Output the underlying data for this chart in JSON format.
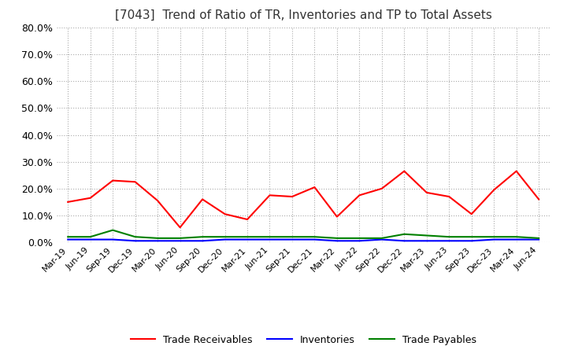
{
  "title": "[7043]  Trend of Ratio of TR, Inventories and TP to Total Assets",
  "title_fontsize": 11,
  "ylim": [
    0.0,
    0.8
  ],
  "yticks": [
    0.0,
    0.1,
    0.2,
    0.3,
    0.4,
    0.5,
    0.6,
    0.7,
    0.8
  ],
  "xlabel": "",
  "ylabel": "",
  "background_color": "#ffffff",
  "plot_bg_color": "#ffffff",
  "grid_color": "#aaaaaa",
  "legend_labels": [
    "Trade Receivables",
    "Inventories",
    "Trade Payables"
  ],
  "legend_colors": [
    "#ff0000",
    "#0000ff",
    "#008000"
  ],
  "x_labels": [
    "Mar-19",
    "Jun-19",
    "Sep-19",
    "Dec-19",
    "Mar-20",
    "Jun-20",
    "Sep-20",
    "Dec-20",
    "Mar-21",
    "Jun-21",
    "Sep-21",
    "Dec-21",
    "Mar-22",
    "Jun-22",
    "Sep-22",
    "Dec-22",
    "Mar-23",
    "Jun-23",
    "Sep-23",
    "Dec-23",
    "Mar-24",
    "Jun-24"
  ],
  "trade_receivables": [
    0.15,
    0.165,
    0.23,
    0.225,
    0.155,
    0.055,
    0.16,
    0.105,
    0.085,
    0.175,
    0.17,
    0.205,
    0.095,
    0.175,
    0.2,
    0.265,
    0.185,
    0.17,
    0.105,
    0.195,
    0.265,
    0.16
  ],
  "inventories": [
    0.01,
    0.01,
    0.01,
    0.005,
    0.005,
    0.005,
    0.005,
    0.01,
    0.01,
    0.01,
    0.01,
    0.01,
    0.005,
    0.005,
    0.01,
    0.005,
    0.005,
    0.005,
    0.005,
    0.01,
    0.01,
    0.01
  ],
  "trade_payables": [
    0.02,
    0.02,
    0.045,
    0.02,
    0.015,
    0.015,
    0.02,
    0.02,
    0.02,
    0.02,
    0.02,
    0.02,
    0.015,
    0.015,
    0.015,
    0.03,
    0.025,
    0.02,
    0.02,
    0.02,
    0.02,
    0.015
  ]
}
